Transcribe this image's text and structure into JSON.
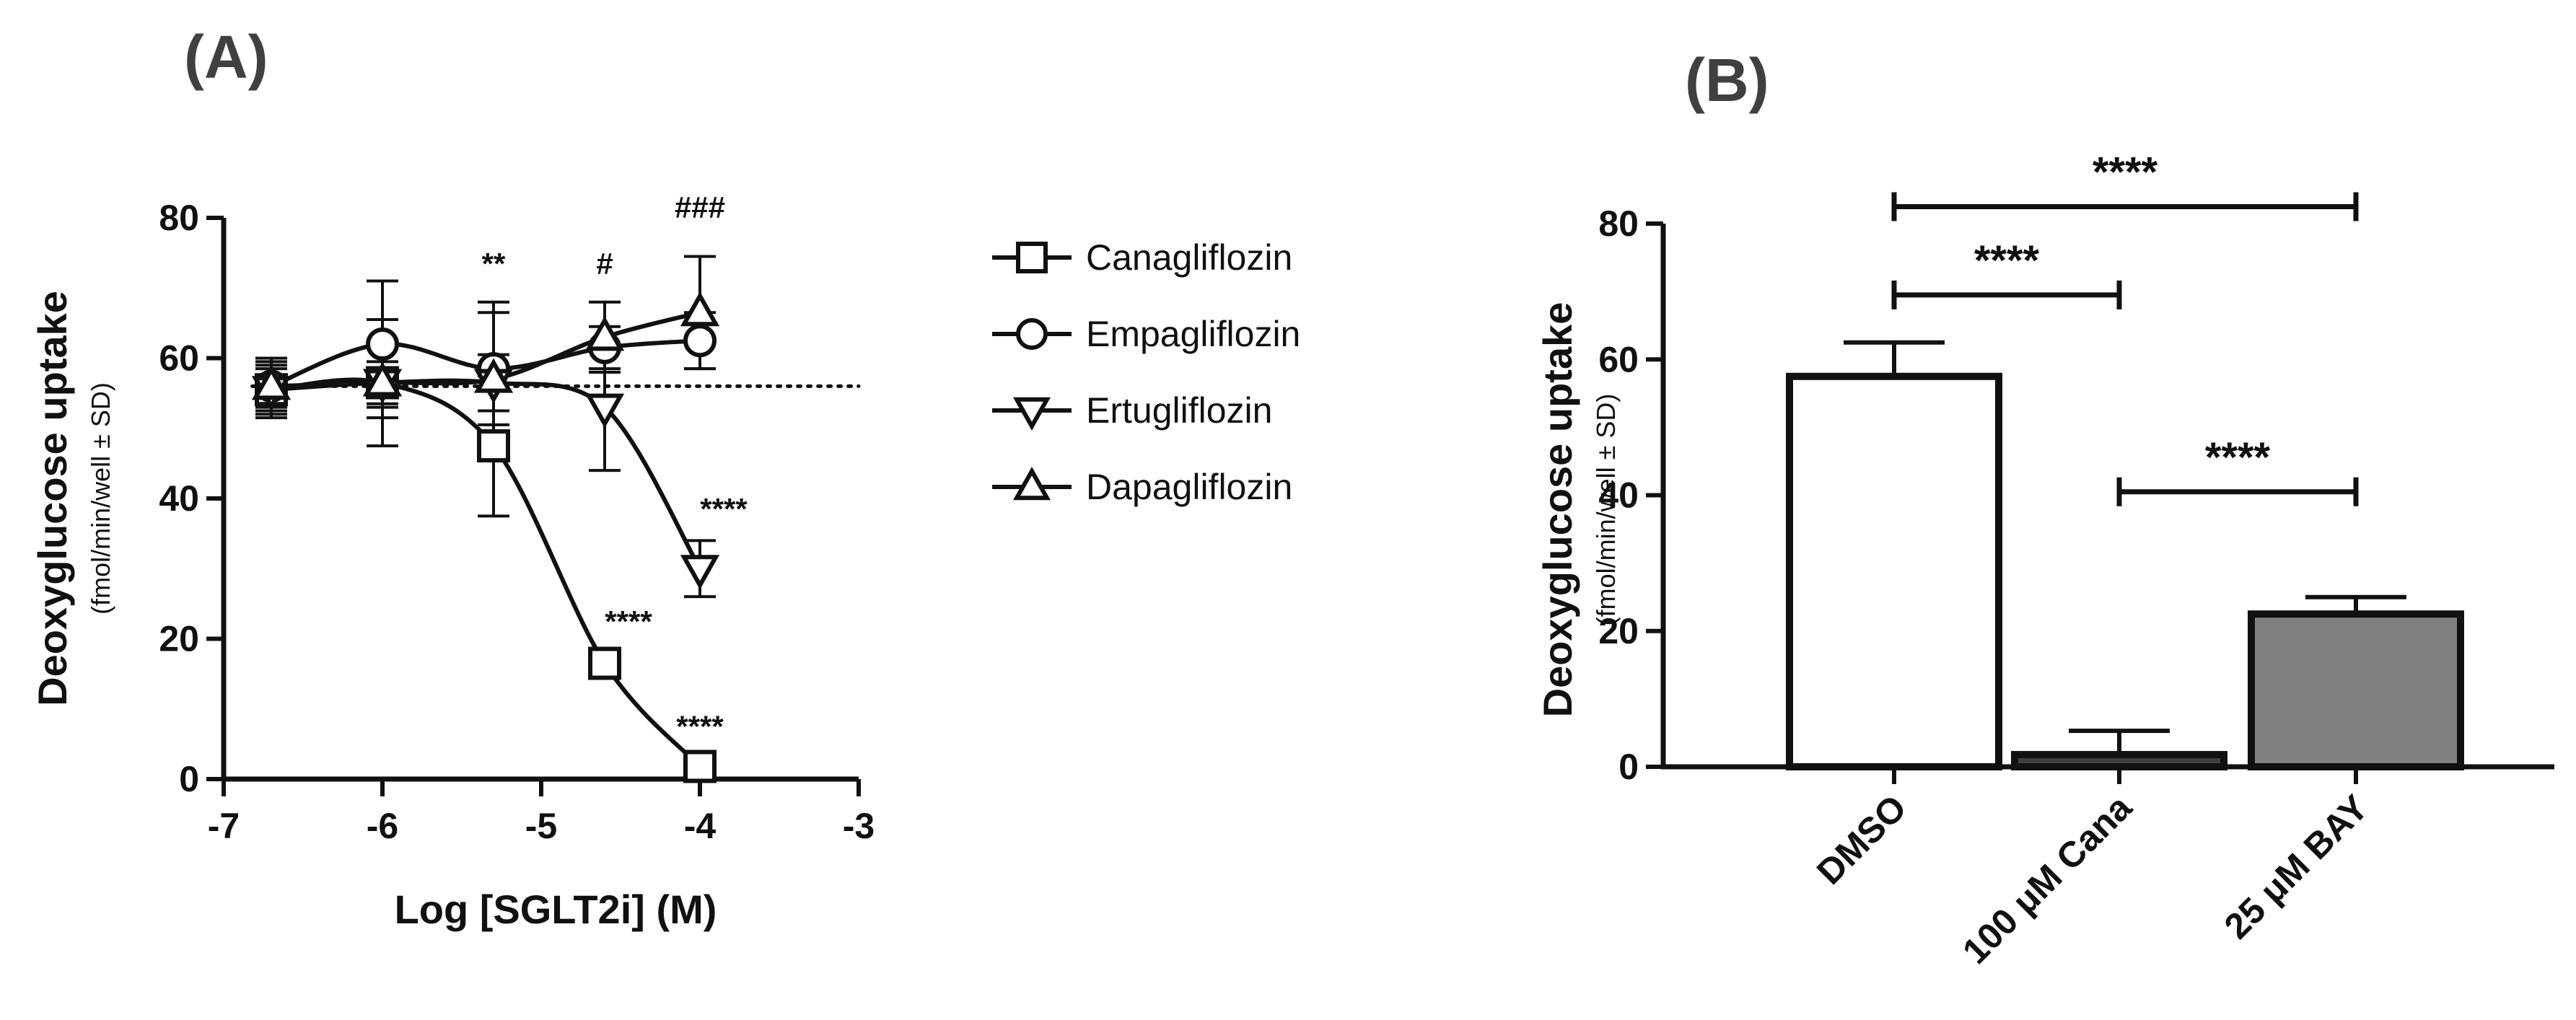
{
  "panels": {
    "a_label": "(A)",
    "b_label": "(B)"
  },
  "chart_data": [
    {
      "type": "line",
      "panel": "(A)",
      "xlabel": "Log [SGLT2i] (M)",
      "ylabel": "Deoxyglucose uptake",
      "ylabel_sub": "(fmol/min/well ± SD)",
      "xlim": [
        -7,
        -3
      ],
      "ylim": [
        0,
        80
      ],
      "xticks": [
        -7,
        -6,
        -5,
        -4,
        -3
      ],
      "yticks": [
        0,
        20,
        40,
        60,
        80
      ],
      "reference_line": {
        "y": 56,
        "style": "dotted"
      },
      "legend_position": "right",
      "series": [
        {
          "name": "Canagliflozin",
          "marker": "square",
          "x": [
            -6.7,
            -6.0,
            -5.3,
            -4.6,
            -4.0
          ],
          "y": [
            55.5,
            56.5,
            47.5,
            16.5,
            1.8
          ],
          "err": [
            4,
            3,
            10,
            0,
            0
          ]
        },
        {
          "name": "Empagliflozin",
          "marker": "circle",
          "x": [
            -6.7,
            -6.0,
            -5.3,
            -4.6,
            -4.0
          ],
          "y": [
            56,
            62,
            58.5,
            61.5,
            62.5
          ],
          "err": [
            3,
            9,
            8,
            3,
            4
          ]
        },
        {
          "name": "Ertugliflozin",
          "marker": "triangle-down",
          "x": [
            -6.7,
            -6.0,
            -5.3,
            -4.6,
            -4.0
          ],
          "y": [
            55.5,
            56.5,
            56.5,
            53,
            30
          ],
          "err": [
            3,
            9,
            4,
            9,
            4
          ]
        },
        {
          "name": "Dapagliflozin",
          "marker": "triangle-up",
          "x": [
            -6.7,
            -6.0,
            -5.3,
            -4.6,
            -4.0
          ],
          "y": [
            56,
            56.5,
            57,
            63,
            66.5
          ],
          "err": [
            4,
            5,
            11,
            5,
            8
          ]
        }
      ],
      "annotations": [
        {
          "text": "**",
          "x": -5.3,
          "y": 72
        },
        {
          "text": "#",
          "x": -4.6,
          "y": 72
        },
        {
          "text": "###",
          "x": -4.0,
          "y": 80
        },
        {
          "text": "****",
          "x": -3.85,
          "y": 37
        },
        {
          "text": "****",
          "x": -4.45,
          "y": 21
        },
        {
          "text": "****",
          "x": -4.0,
          "y": 6
        }
      ]
    },
    {
      "type": "bar",
      "panel": "(B)",
      "xlabel": "",
      "ylabel": "Deoxyglucose uptake",
      "ylabel_sub": "(fmol/min/well ± SD)",
      "ylim": [
        0,
        80
      ],
      "yticks": [
        0,
        20,
        40,
        60,
        80
      ],
      "categories": [
        "DMSO",
        "100 μM Cana",
        "25 μM BAY"
      ],
      "values": [
        57.5,
        1.8,
        22.5
      ],
      "errors": [
        5,
        3.5,
        2.5
      ],
      "colors": [
        "#ffffff",
        "#404040",
        "#808080"
      ],
      "significance": [
        {
          "from": 0,
          "to": 2,
          "y": 82.5,
          "text": "****"
        },
        {
          "from": 0,
          "to": 1,
          "y": 69.5,
          "text": "****"
        },
        {
          "from": 1,
          "to": 2,
          "y": 40.5,
          "text": "****"
        }
      ]
    }
  ]
}
